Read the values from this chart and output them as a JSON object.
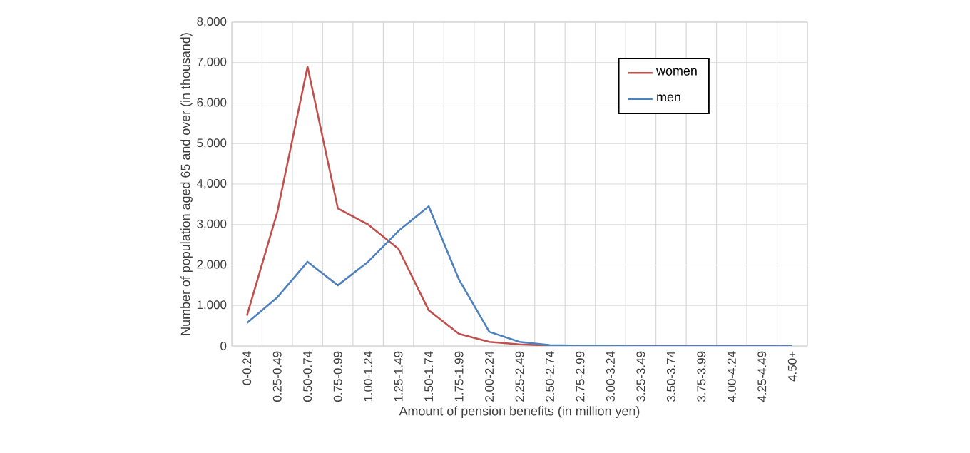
{
  "chart_data": {
    "type": "line",
    "xlabel": "Amount of pension benefits (in million yen)",
    "ylabel": "Number of population aged 65 and over (in thousand)",
    "categories": [
      "0-0.24",
      "0.25-0.49",
      "0.50-0.74",
      "0.75-0.99",
      "1.00-1.24",
      "1.25-1.49",
      "1.50-1.74",
      "1.75-1.99",
      "2.00-2.24",
      "2.25-2.49",
      "2.50-2.74",
      "2.75-2.99",
      "3.00-3.24",
      "3.25-3.49",
      "3.50-3.74",
      "3.75-3.99",
      "4.00-4.24",
      "4.25-4.49",
      "4.50+"
    ],
    "series": [
      {
        "name": "women",
        "color": "#c0504d",
        "values": [
          750,
          3300,
          6900,
          3400,
          3000,
          2400,
          880,
          300,
          100,
          40,
          10,
          0,
          null,
          null,
          null,
          null,
          null,
          null,
          null
        ]
      },
      {
        "name": "men",
        "color": "#4f81bd",
        "values": [
          570,
          1200,
          2080,
          1500,
          2080,
          2840,
          3450,
          1640,
          350,
          100,
          20,
          10,
          10,
          0,
          0,
          0,
          0,
          0,
          0
        ]
      }
    ],
    "ylim": [
      0,
      8000
    ],
    "yticks": [
      0,
      {
        "value": 1000,
        "label": "1,000"
      },
      {
        "value": 2000,
        "label": "2,000"
      },
      {
        "value": 3000,
        "label": "3,000"
      },
      {
        "value": 4000,
        "label": "4,000"
      },
      {
        "value": 5000,
        "label": "5,000"
      },
      {
        "value": 6000,
        "label": "6,000"
      },
      {
        "value": 7000,
        "label": "7,000"
      },
      {
        "value": 8000,
        "label": "8,000"
      }
    ],
    "grid": true,
    "legend": "top right",
    "marker": "none",
    "line_style": "solid"
  }
}
